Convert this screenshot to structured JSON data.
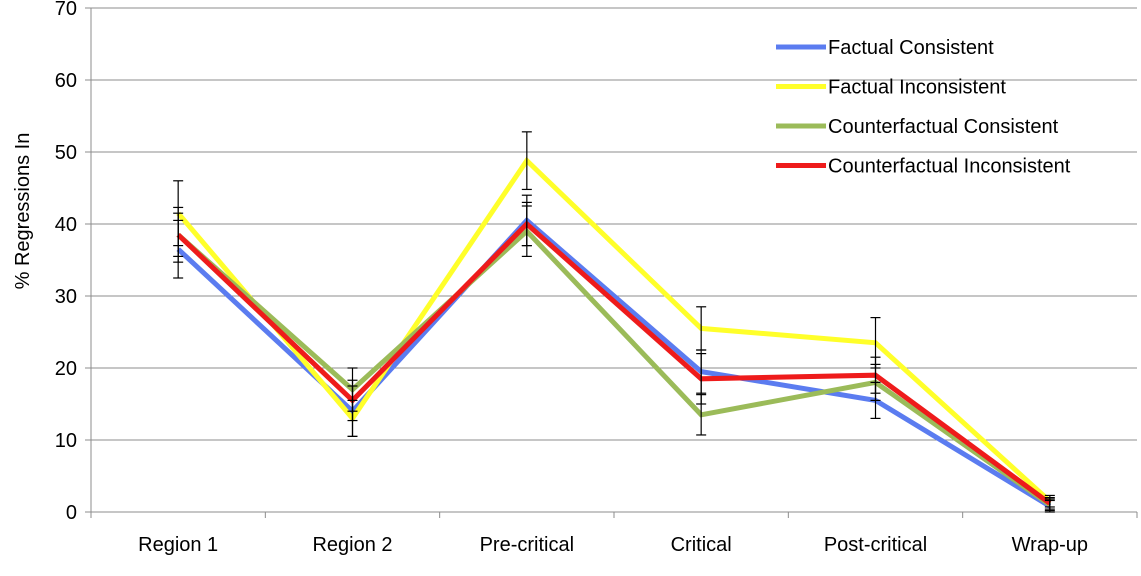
{
  "chart_data": {
    "type": "line",
    "title": "",
    "xlabel": "",
    "ylabel": "% Regressions In",
    "ylim": [
      0,
      70
    ],
    "yticks": [
      "0",
      "10",
      "20",
      "30",
      "40",
      "50",
      "60",
      "70"
    ],
    "grid": true,
    "legend_position": "top-right",
    "categories": [
      "Region 1",
      "Region 2",
      "Pre-critical",
      "Critical",
      "Post-critical",
      "Wrap-up"
    ],
    "series": [
      {
        "name": "Factual Consistent",
        "color": "#5B7CF0",
        "values": [
          36.5,
          14.0,
          40.5,
          19.5,
          15.5,
          0.8
        ],
        "errors": [
          4.0,
          3.5,
          3.5,
          3.0,
          2.5,
          0.8
        ]
      },
      {
        "name": "Factual Inconsistent",
        "color": "#FFFF2A",
        "values": [
          41.5,
          13.0,
          48.8,
          25.5,
          23.5,
          1.5
        ],
        "errors": [
          4.5,
          2.5,
          4.0,
          3.0,
          3.5,
          0.8
        ]
      },
      {
        "name": "Counterfactual Consistent",
        "color": "#9BBB59",
        "values": [
          38.5,
          17.0,
          39.0,
          13.5,
          18.0,
          1.0
        ],
        "errors": [
          3.0,
          3.0,
          3.5,
          2.8,
          2.5,
          0.8
        ]
      },
      {
        "name": "Counterfactual Inconsistent",
        "color": "#EE1B1B",
        "values": [
          38.5,
          15.5,
          40.0,
          18.5,
          19.0,
          1.2
        ],
        "errors": [
          3.8,
          2.8,
          3.0,
          3.5,
          2.5,
          0.8
        ]
      }
    ]
  }
}
